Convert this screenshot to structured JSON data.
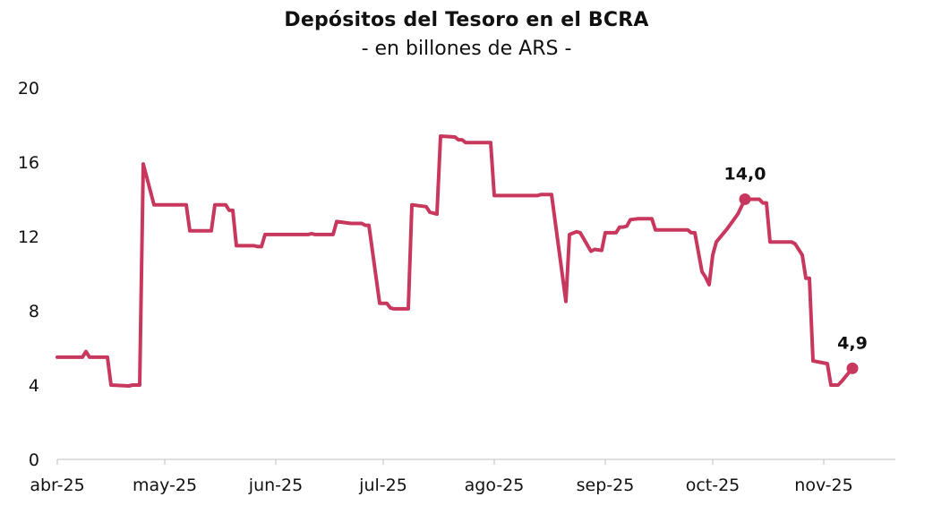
{
  "chart_data": {
    "type": "line",
    "title": "Depósitos del Tesoro en el BCRA",
    "subtitle": "- en billones de ARS -",
    "xlabel": "",
    "ylabel": "",
    "ylim": [
      0,
      20
    ],
    "yticks": [
      0,
      4,
      8,
      12,
      16,
      20
    ],
    "xlim": [
      "2025-04-01",
      "2025-11-21"
    ],
    "xticks": [
      {
        "date": "2025-04-01",
        "label": "abr-25"
      },
      {
        "date": "2025-05-01",
        "label": "may-25"
      },
      {
        "date": "2025-06-01",
        "label": "jun-25"
      },
      {
        "date": "2025-07-01",
        "label": "jul-25"
      },
      {
        "date": "2025-08-01",
        "label": "ago-25"
      },
      {
        "date": "2025-09-01",
        "label": "sep-25"
      },
      {
        "date": "2025-10-01",
        "label": "oct-25"
      },
      {
        "date": "2025-11-01",
        "label": "nov-25"
      }
    ],
    "grid": false,
    "legend": "none",
    "color": "#C8385E",
    "series": [
      {
        "points": [
          [
            "2025-04-01",
            5.5
          ],
          [
            "2025-04-08",
            5.5
          ],
          [
            "2025-04-09",
            5.8
          ],
          [
            "2025-04-10",
            5.5
          ],
          [
            "2025-04-15",
            5.5
          ],
          [
            "2025-04-16",
            4.0
          ],
          [
            "2025-04-21",
            3.95
          ],
          [
            "2025-04-22",
            4.0
          ],
          [
            "2025-04-24",
            4.0
          ],
          [
            "2025-04-25",
            15.9
          ],
          [
            "2025-04-28",
            13.7
          ],
          [
            "2025-05-07",
            13.7
          ],
          [
            "2025-05-08",
            12.3
          ],
          [
            "2025-05-14",
            12.3
          ],
          [
            "2025-05-15",
            13.7
          ],
          [
            "2025-05-18",
            13.7
          ],
          [
            "2025-05-19",
            13.4
          ],
          [
            "2025-05-20",
            13.4
          ],
          [
            "2025-05-21",
            11.5
          ],
          [
            "2025-05-26",
            11.5
          ],
          [
            "2025-05-27",
            11.45
          ],
          [
            "2025-05-28",
            11.45
          ],
          [
            "2025-05-29",
            12.1
          ],
          [
            "2025-06-10",
            12.1
          ],
          [
            "2025-06-11",
            12.15
          ],
          [
            "2025-06-12",
            12.1
          ],
          [
            "2025-06-17",
            12.1
          ],
          [
            "2025-06-18",
            12.8
          ],
          [
            "2025-06-22",
            12.7
          ],
          [
            "2025-06-25",
            12.7
          ],
          [
            "2025-06-26",
            12.6
          ],
          [
            "2025-06-27",
            12.6
          ],
          [
            "2025-06-30",
            8.4
          ],
          [
            "2025-07-02",
            8.4
          ],
          [
            "2025-07-03",
            8.15
          ],
          [
            "2025-07-04",
            8.1
          ],
          [
            "2025-07-08",
            8.1
          ],
          [
            "2025-07-09",
            13.7
          ],
          [
            "2025-07-13",
            13.6
          ],
          [
            "2025-07-14",
            13.3
          ],
          [
            "2025-07-16",
            13.2
          ],
          [
            "2025-07-17",
            17.4
          ],
          [
            "2025-07-21",
            17.35
          ],
          [
            "2025-07-22",
            17.2
          ],
          [
            "2025-07-23",
            17.2
          ],
          [
            "2025-07-24",
            17.05
          ],
          [
            "2025-07-31",
            17.05
          ],
          [
            "2025-08-01",
            14.2
          ],
          [
            "2025-08-13",
            14.2
          ],
          [
            "2025-08-14",
            14.25
          ],
          [
            "2025-08-17",
            14.25
          ],
          [
            "2025-08-21",
            8.5
          ],
          [
            "2025-08-22",
            12.1
          ],
          [
            "2025-08-24",
            12.25
          ],
          [
            "2025-08-25",
            12.2
          ],
          [
            "2025-08-28",
            11.2
          ],
          [
            "2025-08-29",
            11.3
          ],
          [
            "2025-08-31",
            11.25
          ],
          [
            "2025-09-01",
            12.2
          ],
          [
            "2025-09-04",
            12.2
          ],
          [
            "2025-09-05",
            12.5
          ],
          [
            "2025-09-06",
            12.5
          ],
          [
            "2025-09-07",
            12.55
          ],
          [
            "2025-09-08",
            12.9
          ],
          [
            "2025-09-10",
            12.95
          ],
          [
            "2025-09-14",
            12.95
          ],
          [
            "2025-09-15",
            12.35
          ],
          [
            "2025-09-24",
            12.35
          ],
          [
            "2025-09-25",
            12.2
          ],
          [
            "2025-09-26",
            12.2
          ],
          [
            "2025-09-28",
            10.1
          ],
          [
            "2025-09-29",
            9.8
          ],
          [
            "2025-09-30",
            9.4
          ],
          [
            "2025-10-01",
            11.0
          ],
          [
            "2025-10-02",
            11.7
          ],
          [
            "2025-10-05",
            12.4
          ],
          [
            "2025-10-08",
            13.2
          ],
          [
            "2025-10-10",
            14.0
          ],
          [
            "2025-10-14",
            14.0
          ],
          [
            "2025-10-15",
            13.8
          ],
          [
            "2025-10-16",
            13.8
          ],
          [
            "2025-10-17",
            11.7
          ],
          [
            "2025-10-23",
            11.7
          ],
          [
            "2025-10-24",
            11.6
          ],
          [
            "2025-10-26",
            11.0
          ],
          [
            "2025-10-27",
            9.75
          ],
          [
            "2025-10-28",
            9.75
          ],
          [
            "2025-10-29",
            5.3
          ],
          [
            "2025-11-02",
            5.15
          ],
          [
            "2025-11-03",
            4.0
          ],
          [
            "2025-11-05",
            4.0
          ],
          [
            "2025-11-06",
            4.2
          ],
          [
            "2025-11-09",
            4.9
          ]
        ]
      }
    ],
    "annotations": [
      {
        "date": "2025-10-10",
        "value": 14.0,
        "text": "14,0"
      },
      {
        "date": "2025-11-09",
        "value": 4.9,
        "text": "4,9"
      }
    ]
  }
}
